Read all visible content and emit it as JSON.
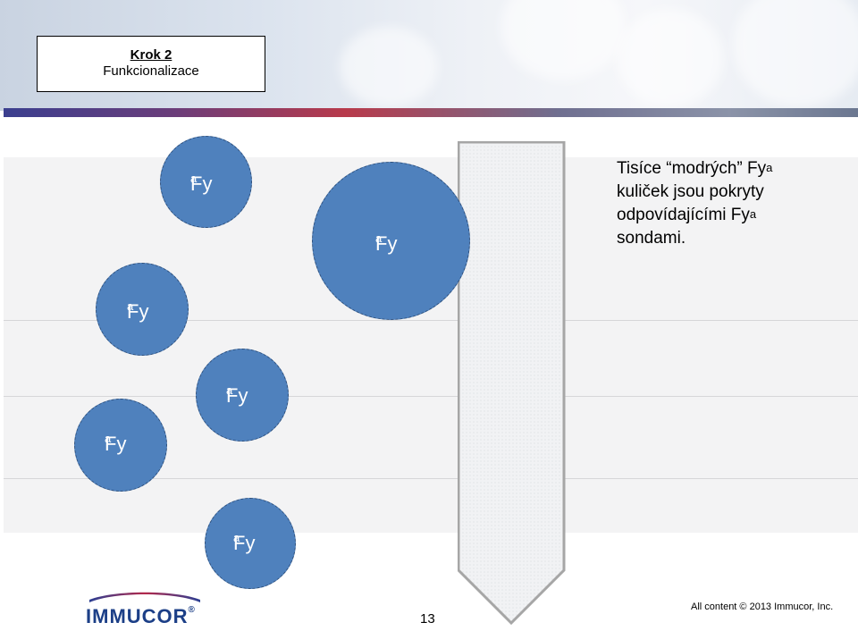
{
  "header": {
    "step_title": "Krok 2",
    "step_subtitle": "Funkcionalizace"
  },
  "bead_label": {
    "base": "Fy",
    "sup": "a"
  },
  "description": {
    "lines": [
      {
        "text": "Tisíce “modrých” Fy",
        "sup": "a"
      },
      {
        "text": "kuliček jsou pokryty",
        "sup": ""
      },
      {
        "text": "odpovídajícími Fy",
        "sup": "a"
      },
      {
        "text": "sondami.",
        "sup": ""
      }
    ]
  },
  "footer": {
    "logo": "IMMUCOR",
    "logo_mark": "®",
    "page_number": "13",
    "copyright": "All content © 2013 Immucor, Inc."
  },
  "colors": {
    "bead": "#4f81bd",
    "bead_border": "#2d4f7c",
    "strip": "#f2f3f5",
    "strip_border": "#a6a6a6",
    "logo": "#1c3f87"
  }
}
